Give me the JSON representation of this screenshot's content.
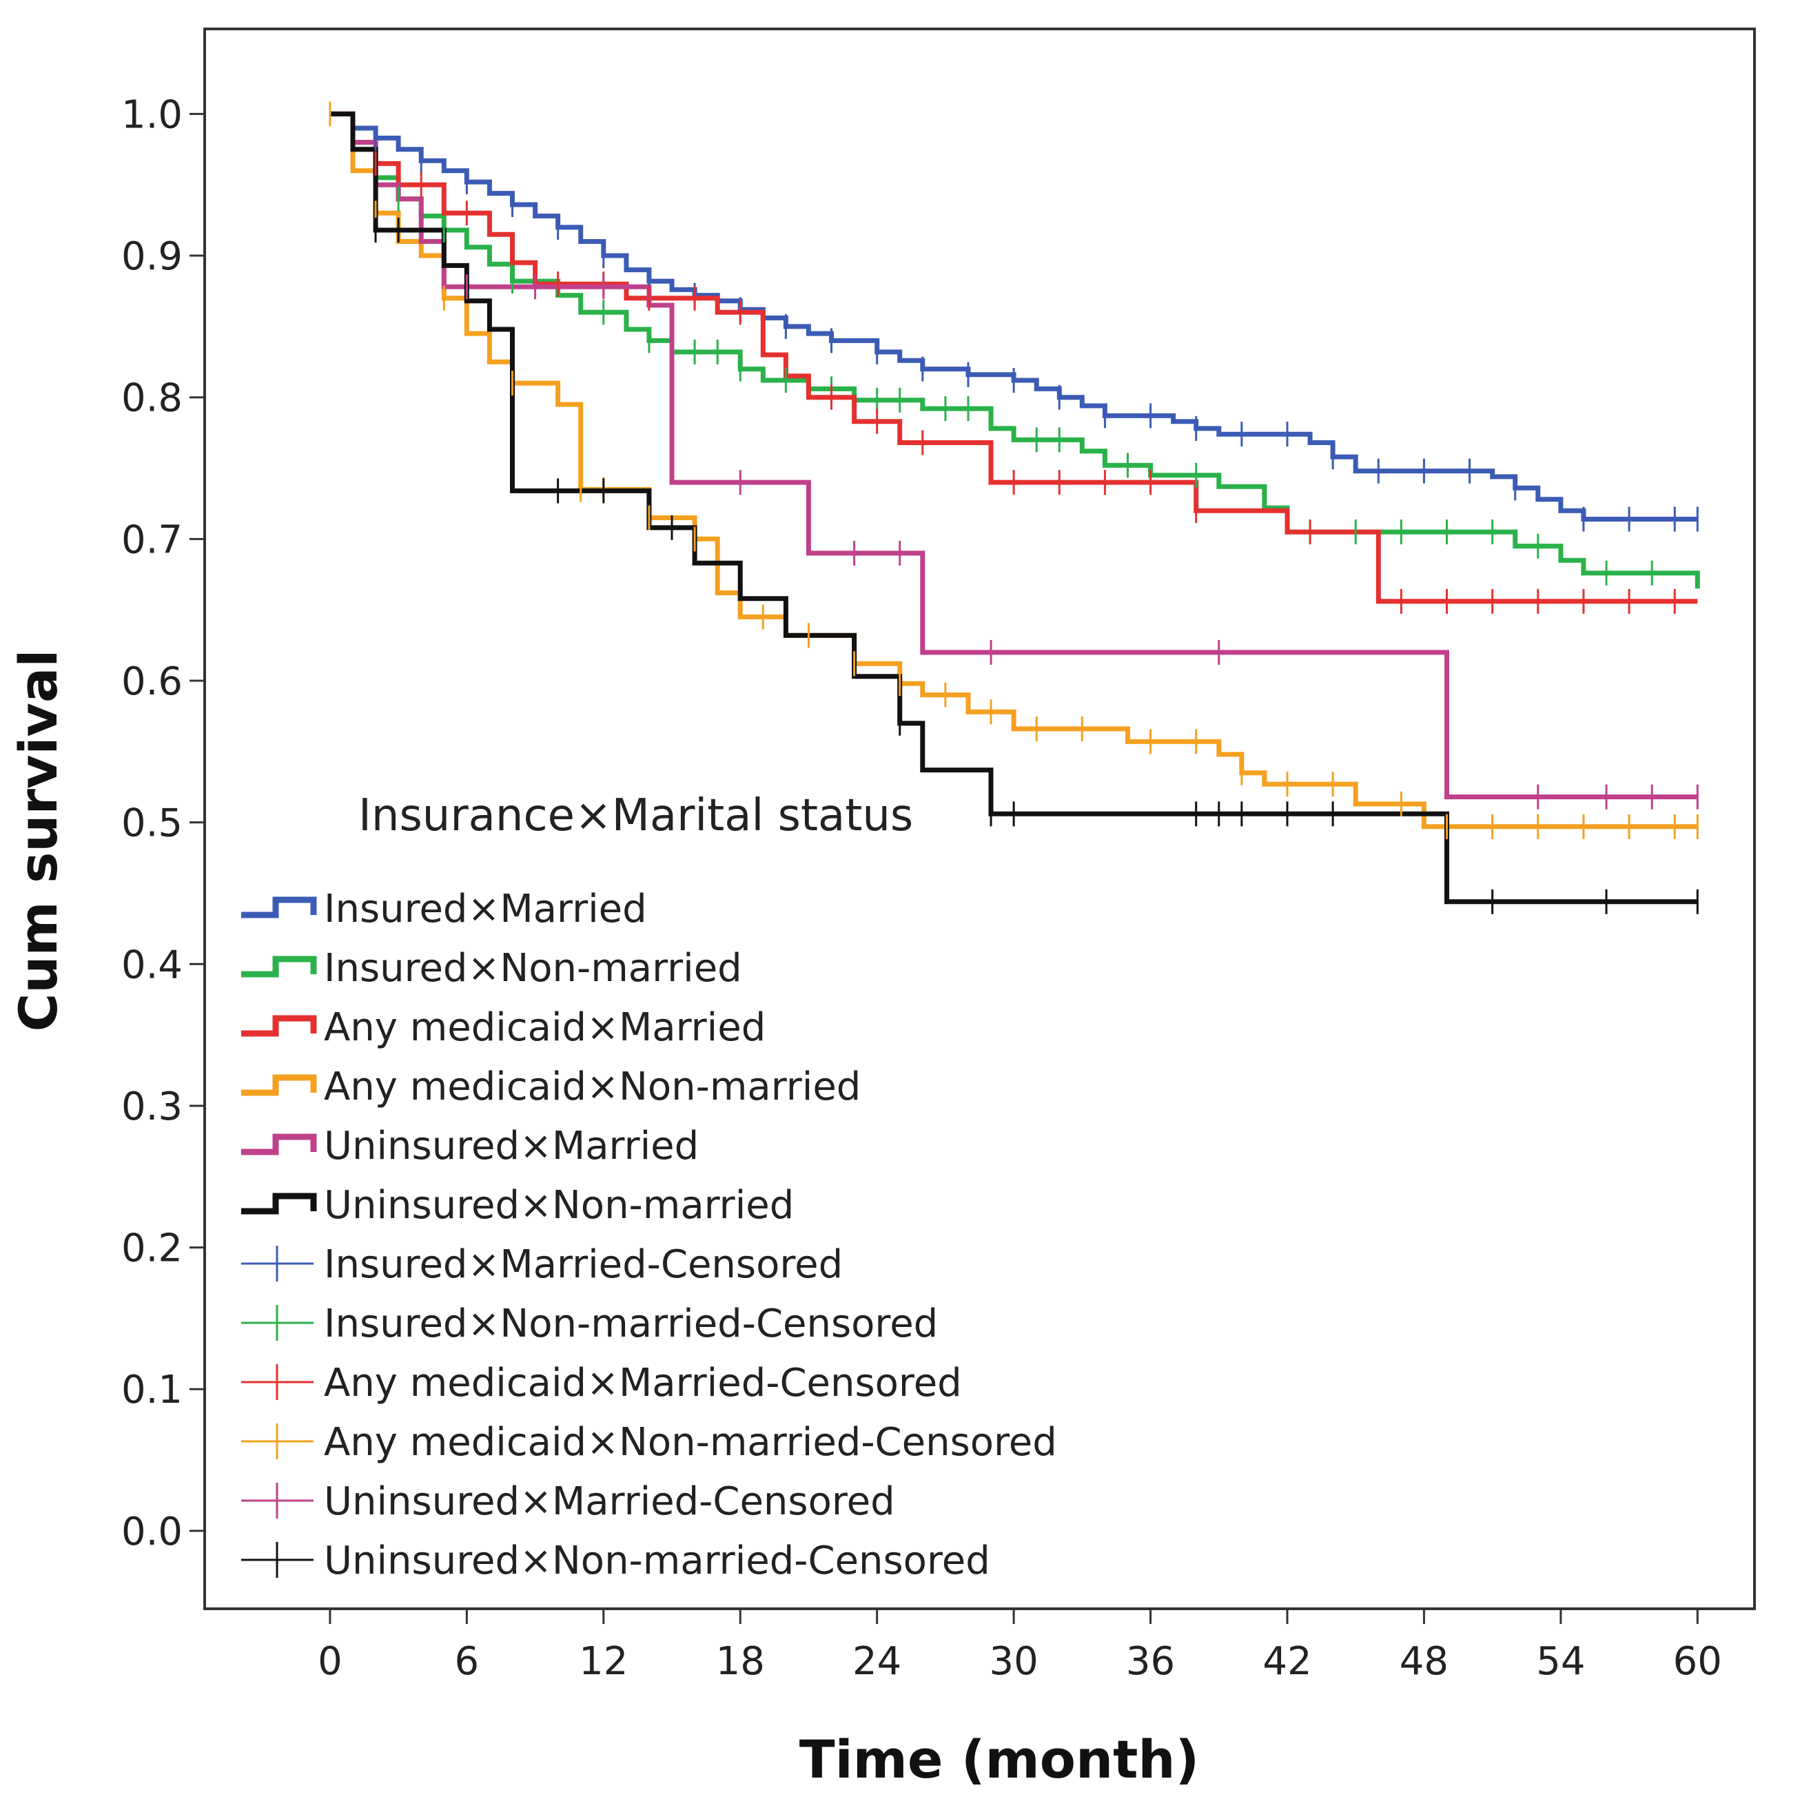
{
  "chart_data": {
    "type": "line",
    "subtype": "kaplan-meier step curves",
    "xlabel": "Time (month)",
    "ylabel": "Cum survival",
    "xlim": [
      -5.5,
      62.5
    ],
    "ylim": [
      -0.055,
      1.06
    ],
    "xticks": [
      0,
      6,
      12,
      18,
      24,
      30,
      36,
      42,
      48,
      54,
      60
    ],
    "yticks": [
      0.0,
      0.1,
      0.2,
      0.3,
      0.4,
      0.5,
      0.6,
      0.7,
      0.8,
      0.9,
      1.0
    ],
    "ytick_labels": [
      "0.0",
      "0.1",
      "0.2",
      "0.3",
      "0.4",
      "0.5",
      "0.6",
      "0.7",
      "0.8",
      "0.9",
      "1.0"
    ],
    "grid": false,
    "legend_title": "Insurance×Marital status",
    "legend_position": "left",
    "series": [
      {
        "name": "Insured×Married",
        "censored_label": "Insured×Married-Censored",
        "color": "#3b5bb5",
        "steps": [
          [
            0,
            1.0
          ],
          [
            1,
            0.99
          ],
          [
            2,
            0.983
          ],
          [
            3,
            0.975
          ],
          [
            4,
            0.967
          ],
          [
            5,
            0.96
          ],
          [
            6,
            0.952
          ],
          [
            7,
            0.944
          ],
          [
            8,
            0.936
          ],
          [
            9,
            0.928
          ],
          [
            10,
            0.92
          ],
          [
            11,
            0.91
          ],
          [
            12,
            0.9
          ],
          [
            13,
            0.89
          ],
          [
            14,
            0.882
          ],
          [
            15,
            0.876
          ],
          [
            16,
            0.872
          ],
          [
            17,
            0.868
          ],
          [
            18,
            0.862
          ],
          [
            19,
            0.856
          ],
          [
            20,
            0.85
          ],
          [
            21,
            0.845
          ],
          [
            22,
            0.84
          ],
          [
            24,
            0.832
          ],
          [
            25,
            0.826
          ],
          [
            26,
            0.82
          ],
          [
            28,
            0.816
          ],
          [
            30,
            0.812
          ],
          [
            31,
            0.806
          ],
          [
            32,
            0.8
          ],
          [
            33,
            0.794
          ],
          [
            34,
            0.787
          ],
          [
            37,
            0.783
          ],
          [
            38,
            0.778
          ],
          [
            39,
            0.774
          ],
          [
            43,
            0.768
          ],
          [
            44,
            0.758
          ],
          [
            45,
            0.748
          ],
          [
            51,
            0.744
          ],
          [
            52,
            0.736
          ],
          [
            53,
            0.728
          ],
          [
            54,
            0.72
          ],
          [
            55,
            0.714
          ],
          [
            60,
            0.714
          ]
        ],
        "censored": [
          2,
          4,
          6,
          8,
          10,
          12,
          14,
          16,
          18,
          20,
          22,
          24,
          26,
          28,
          30,
          32,
          34,
          36,
          38,
          40,
          42,
          44,
          46,
          48,
          50,
          52,
          55,
          57,
          59,
          60
        ]
      },
      {
        "name": "Insured×Non-married",
        "censored_label": "Insured×Non-married-Censored",
        "color": "#2ab24a",
        "steps": [
          [
            0,
            1.0
          ],
          [
            1,
            0.975
          ],
          [
            2,
            0.955
          ],
          [
            3,
            0.94
          ],
          [
            4,
            0.928
          ],
          [
            5,
            0.918
          ],
          [
            6,
            0.906
          ],
          [
            7,
            0.894
          ],
          [
            8,
            0.882
          ],
          [
            10,
            0.872
          ],
          [
            11,
            0.86
          ],
          [
            13,
            0.848
          ],
          [
            14,
            0.84
          ],
          [
            15,
            0.832
          ],
          [
            18,
            0.82
          ],
          [
            19,
            0.812
          ],
          [
            21,
            0.806
          ],
          [
            23,
            0.798
          ],
          [
            26,
            0.792
          ],
          [
            29,
            0.778
          ],
          [
            30,
            0.77
          ],
          [
            33,
            0.762
          ],
          [
            34,
            0.752
          ],
          [
            36,
            0.745
          ],
          [
            39,
            0.737
          ],
          [
            41,
            0.722
          ],
          [
            42,
            0.705
          ],
          [
            52,
            0.695
          ],
          [
            54,
            0.685
          ],
          [
            55,
            0.676
          ],
          [
            60,
            0.665
          ]
        ],
        "censored": [
          3,
          5,
          8,
          12,
          14,
          16,
          17,
          18,
          20,
          22,
          24,
          25,
          27,
          28,
          31,
          32,
          35,
          38,
          43,
          45,
          47,
          49,
          51,
          53,
          56,
          58
        ]
      },
      {
        "name": "Any medicaid×Married",
        "censored_label": "Any medicaid×Married-Censored",
        "color": "#e53030",
        "steps": [
          [
            0,
            1.0
          ],
          [
            1,
            0.98
          ],
          [
            2,
            0.965
          ],
          [
            3,
            0.95
          ],
          [
            5,
            0.93
          ],
          [
            7,
            0.915
          ],
          [
            8,
            0.895
          ],
          [
            9,
            0.88
          ],
          [
            13,
            0.87
          ],
          [
            17,
            0.86
          ],
          [
            19,
            0.83
          ],
          [
            20,
            0.815
          ],
          [
            21,
            0.8
          ],
          [
            23,
            0.783
          ],
          [
            25,
            0.768
          ],
          [
            29,
            0.74
          ],
          [
            38,
            0.72
          ],
          [
            42,
            0.705
          ],
          [
            46,
            0.656
          ],
          [
            60,
            0.656
          ]
        ],
        "censored": [
          2,
          4,
          6,
          10,
          12,
          14,
          16,
          18,
          22,
          24,
          26,
          30,
          32,
          34,
          36,
          38,
          43,
          47,
          49,
          51,
          53,
          55,
          57,
          59
        ]
      },
      {
        "name": "Any medicaid×Non-married",
        "censored_label": "Any medicaid×Non-married-Censored",
        "color": "#f5a020",
        "steps": [
          [
            0,
            1.0
          ],
          [
            1,
            0.96
          ],
          [
            2,
            0.93
          ],
          [
            3,
            0.91
          ],
          [
            4,
            0.9
          ],
          [
            5,
            0.87
          ],
          [
            6,
            0.845
          ],
          [
            7,
            0.825
          ],
          [
            8,
            0.81
          ],
          [
            10,
            0.795
          ],
          [
            11,
            0.735
          ],
          [
            14,
            0.715
          ],
          [
            16,
            0.7
          ],
          [
            17,
            0.662
          ],
          [
            18,
            0.645
          ],
          [
            20,
            0.632
          ],
          [
            23,
            0.612
          ],
          [
            25,
            0.598
          ],
          [
            26,
            0.59
          ],
          [
            28,
            0.578
          ],
          [
            30,
            0.566
          ],
          [
            35,
            0.557
          ],
          [
            39,
            0.548
          ],
          [
            40,
            0.535
          ],
          [
            41,
            0.527
          ],
          [
            45,
            0.513
          ],
          [
            48,
            0.497
          ],
          [
            60,
            0.497
          ]
        ],
        "censored": [
          0,
          2,
          5,
          8,
          11,
          12,
          14,
          16,
          19,
          21,
          23,
          25,
          27,
          29,
          31,
          33,
          36,
          38,
          40,
          42,
          44,
          47,
          49,
          51,
          53,
          55,
          57,
          59,
          60
        ]
      },
      {
        "name": "Uninsured×Married",
        "censored_label": "Uninsured×Married-Censored",
        "color": "#c0408a",
        "steps": [
          [
            0,
            1.0
          ],
          [
            1,
            0.98
          ],
          [
            2,
            0.95
          ],
          [
            3,
            0.94
          ],
          [
            4,
            0.91
          ],
          [
            5,
            0.878
          ],
          [
            14,
            0.865
          ],
          [
            15,
            0.74
          ],
          [
            21,
            0.69
          ],
          [
            26,
            0.62
          ],
          [
            49,
            0.518
          ],
          [
            60,
            0.518
          ]
        ],
        "censored": [
          6,
          9,
          12,
          18,
          23,
          25,
          29,
          39,
          53,
          56,
          58,
          60
        ]
      },
      {
        "name": "Uninsured×Non-married",
        "censored_label": "Uninsured×Non-married-Censored",
        "color": "#111111",
        "steps": [
          [
            0,
            1.0
          ],
          [
            1,
            0.975
          ],
          [
            2,
            0.918
          ],
          [
            5,
            0.893
          ],
          [
            6,
            0.868
          ],
          [
            7,
            0.848
          ],
          [
            8,
            0.734
          ],
          [
            14,
            0.708
          ],
          [
            16,
            0.683
          ],
          [
            18,
            0.658
          ],
          [
            20,
            0.632
          ],
          [
            23,
            0.603
          ],
          [
            25,
            0.57
          ],
          [
            26,
            0.537
          ],
          [
            29,
            0.506
          ],
          [
            49,
            0.444
          ],
          [
            60,
            0.444
          ]
        ],
        "censored": [
          2,
          3,
          10,
          12,
          15,
          25,
          29,
          30,
          38,
          39,
          40,
          42,
          44,
          51,
          56,
          60
        ]
      }
    ]
  }
}
